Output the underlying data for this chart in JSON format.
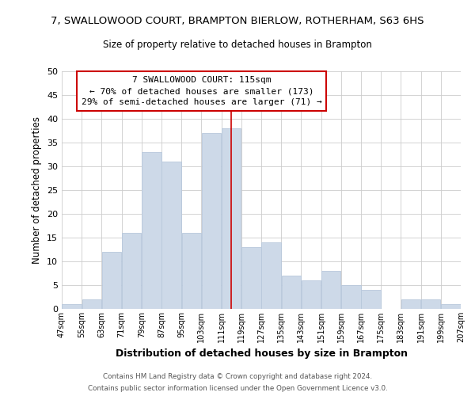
{
  "title": "7, SWALLOWOOD COURT, BRAMPTON BIERLOW, ROTHERHAM, S63 6HS",
  "subtitle": "Size of property relative to detached houses in Brampton",
  "xlabel": "Distribution of detached houses by size in Brampton",
  "ylabel": "Number of detached properties",
  "bar_color": "#cdd9e8",
  "bar_edge_color": "#b8c8dc",
  "bin_edges": [
    47,
    55,
    63,
    71,
    79,
    87,
    95,
    103,
    111,
    119,
    127,
    135,
    143,
    151,
    159,
    167,
    175,
    183,
    191,
    199,
    207
  ],
  "bin_labels": [
    "47sqm",
    "55sqm",
    "63sqm",
    "71sqm",
    "79sqm",
    "87sqm",
    "95sqm",
    "103sqm",
    "111sqm",
    "119sqm",
    "127sqm",
    "135sqm",
    "143sqm",
    "151sqm",
    "159sqm",
    "167sqm",
    "175sqm",
    "183sqm",
    "191sqm",
    "199sqm",
    "207sqm"
  ],
  "counts": [
    1,
    2,
    12,
    16,
    33,
    31,
    16,
    37,
    38,
    13,
    14,
    7,
    6,
    8,
    5,
    4,
    0,
    2,
    2,
    1
  ],
  "vline_x": 115,
  "vline_color": "#cc0000",
  "annotation_title": "7 SWALLOWOOD COURT: 115sqm",
  "annotation_line1": "← 70% of detached houses are smaller (173)",
  "annotation_line2": "29% of semi-detached houses are larger (71) →",
  "annotation_box_color": "#ffffff",
  "annotation_box_edge": "#cc0000",
  "ylim": [
    0,
    50
  ],
  "yticks": [
    0,
    5,
    10,
    15,
    20,
    25,
    30,
    35,
    40,
    45,
    50
  ],
  "footer1": "Contains HM Land Registry data © Crown copyright and database right 2024.",
  "footer2": "Contains public sector information licensed under the Open Government Licence v3.0.",
  "background_color": "#ffffff",
  "grid_color": "#cccccc"
}
